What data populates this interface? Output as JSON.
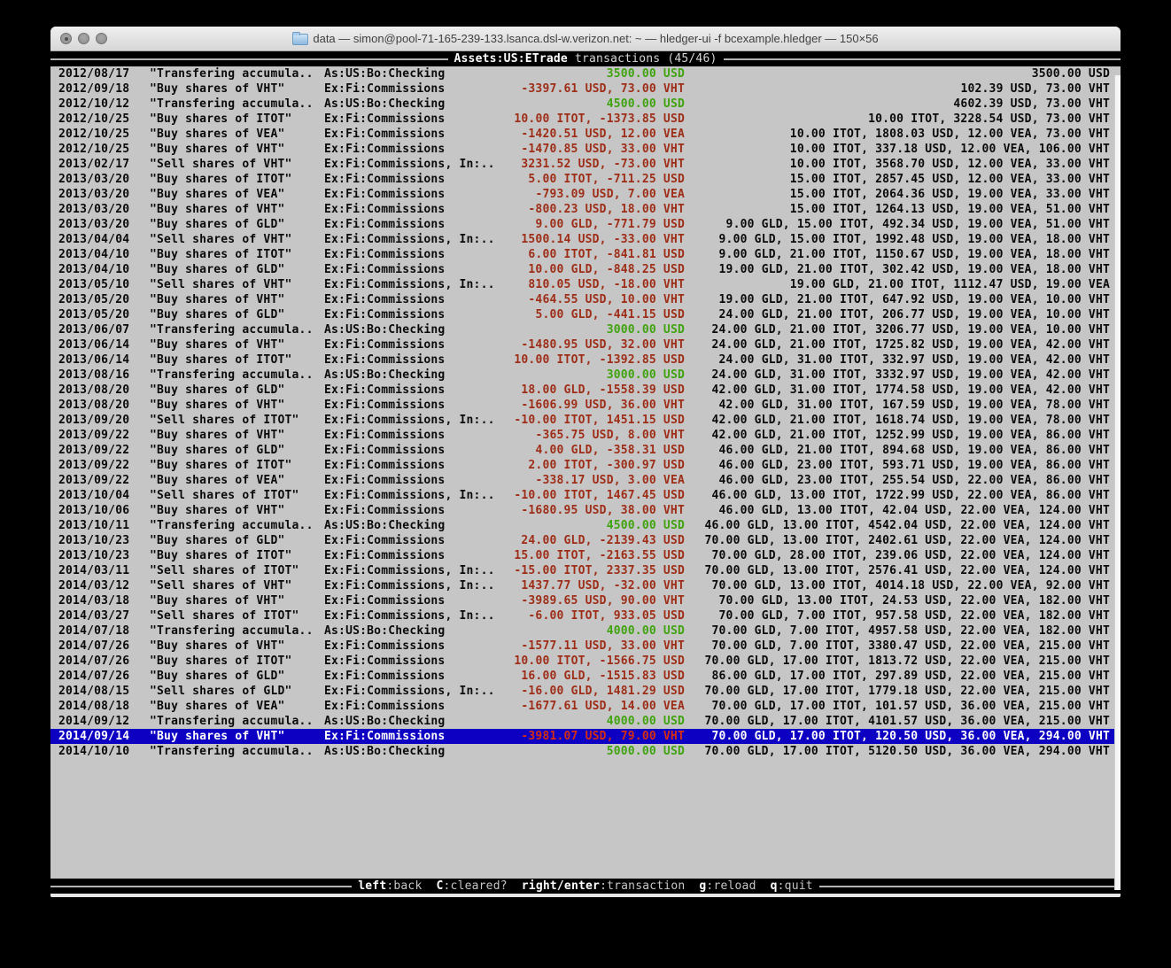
{
  "window": {
    "title": "data — simon@pool-71-165-239-133.lsanca.dsl-w.verizon.net: ~ — hledger-ui -f bcexample.hledger — 150×56"
  },
  "header": {
    "account": "Assets:US:ETrade",
    "label": "transactions (45/46)"
  },
  "footer": {
    "hints": [
      {
        "key": "left",
        "desc": ":back"
      },
      {
        "key": "C",
        "desc": ":cleared?"
      },
      {
        "key": "right/enter",
        "desc": ":transaction"
      },
      {
        "key": "g",
        "desc": ":reload"
      },
      {
        "key": "q",
        "desc": ":quit"
      }
    ]
  },
  "colors": {
    "terminal_bg": "#c6c6c6",
    "bar_bg": "#000000",
    "positive_green": "#3fa30e",
    "negative_red": "#9e2d17",
    "selected_red": "#d42d14",
    "selection_blue": "#0d00c2"
  },
  "transactions": {
    "selected_index": 44,
    "rows": [
      {
        "date": "2012/08/17",
        "description": "\"Transfering accumula..",
        "account": "As:US:Bo:Checking",
        "change": "3500.00 USD",
        "change_type": "deposit",
        "balance": "3500.00 USD"
      },
      {
        "date": "2012/09/18",
        "description": "\"Buy shares of VHT\"",
        "account": "Ex:Fi:Commissions",
        "change": "-3397.61 USD, 73.00 VHT",
        "change_type": "trade",
        "balance": "102.39 USD, 73.00 VHT"
      },
      {
        "date": "2012/10/12",
        "description": "\"Transfering accumula..",
        "account": "As:US:Bo:Checking",
        "change": "4500.00 USD",
        "change_type": "deposit",
        "balance": "4602.39 USD, 73.00 VHT"
      },
      {
        "date": "2012/10/25",
        "description": "\"Buy shares of ITOT\"",
        "account": "Ex:Fi:Commissions",
        "change": "10.00 ITOT, -1373.85 USD",
        "change_type": "trade",
        "balance": "10.00 ITOT, 3228.54 USD, 73.00 VHT"
      },
      {
        "date": "2012/10/25",
        "description": "\"Buy shares of VEA\"",
        "account": "Ex:Fi:Commissions",
        "change": "-1420.51 USD, 12.00 VEA",
        "change_type": "trade",
        "balance": "10.00 ITOT, 1808.03 USD, 12.00 VEA, 73.00 VHT"
      },
      {
        "date": "2012/10/25",
        "description": "\"Buy shares of VHT\"",
        "account": "Ex:Fi:Commissions",
        "change": "-1470.85 USD, 33.00 VHT",
        "change_type": "trade",
        "balance": "10.00 ITOT, 337.18 USD, 12.00 VEA, 106.00 VHT"
      },
      {
        "date": "2013/02/17",
        "description": "\"Sell shares of VHT\"",
        "account": "Ex:Fi:Commissions, In:..",
        "change": "3231.52 USD, -73.00 VHT",
        "change_type": "trade",
        "balance": "10.00 ITOT, 3568.70 USD, 12.00 VEA, 33.00 VHT"
      },
      {
        "date": "2013/03/20",
        "description": "\"Buy shares of ITOT\"",
        "account": "Ex:Fi:Commissions",
        "change": "5.00 ITOT, -711.25 USD",
        "change_type": "trade",
        "balance": "15.00 ITOT, 2857.45 USD, 12.00 VEA, 33.00 VHT"
      },
      {
        "date": "2013/03/20",
        "description": "\"Buy shares of VEA\"",
        "account": "Ex:Fi:Commissions",
        "change": "-793.09 USD, 7.00 VEA",
        "change_type": "trade",
        "balance": "15.00 ITOT, 2064.36 USD, 19.00 VEA, 33.00 VHT"
      },
      {
        "date": "2013/03/20",
        "description": "\"Buy shares of VHT\"",
        "account": "Ex:Fi:Commissions",
        "change": "-800.23 USD, 18.00 VHT",
        "change_type": "trade",
        "balance": "15.00 ITOT, 1264.13 USD, 19.00 VEA, 51.00 VHT"
      },
      {
        "date": "2013/03/20",
        "description": "\"Buy shares of GLD\"",
        "account": "Ex:Fi:Commissions",
        "change": "9.00 GLD, -771.79 USD",
        "change_type": "trade",
        "balance": "9.00 GLD, 15.00 ITOT, 492.34 USD, 19.00 VEA, 51.00 VHT"
      },
      {
        "date": "2013/04/04",
        "description": "\"Sell shares of VHT\"",
        "account": "Ex:Fi:Commissions, In:..",
        "change": "1500.14 USD, -33.00 VHT",
        "change_type": "trade",
        "balance": "9.00 GLD, 15.00 ITOT, 1992.48 USD, 19.00 VEA, 18.00 VHT"
      },
      {
        "date": "2013/04/10",
        "description": "\"Buy shares of ITOT\"",
        "account": "Ex:Fi:Commissions",
        "change": "6.00 ITOT, -841.81 USD",
        "change_type": "trade",
        "balance": "9.00 GLD, 21.00 ITOT, 1150.67 USD, 19.00 VEA, 18.00 VHT"
      },
      {
        "date": "2013/04/10",
        "description": "\"Buy shares of GLD\"",
        "account": "Ex:Fi:Commissions",
        "change": "10.00 GLD, -848.25 USD",
        "change_type": "trade",
        "balance": "19.00 GLD, 21.00 ITOT, 302.42 USD, 19.00 VEA, 18.00 VHT"
      },
      {
        "date": "2013/05/10",
        "description": "\"Sell shares of VHT\"",
        "account": "Ex:Fi:Commissions, In:..",
        "change": "810.05 USD, -18.00 VHT",
        "change_type": "trade",
        "balance": "19.00 GLD, 21.00 ITOT, 1112.47 USD, 19.00 VEA"
      },
      {
        "date": "2013/05/20",
        "description": "\"Buy shares of VHT\"",
        "account": "Ex:Fi:Commissions",
        "change": "-464.55 USD, 10.00 VHT",
        "change_type": "trade",
        "balance": "19.00 GLD, 21.00 ITOT, 647.92 USD, 19.00 VEA, 10.00 VHT"
      },
      {
        "date": "2013/05/20",
        "description": "\"Buy shares of GLD\"",
        "account": "Ex:Fi:Commissions",
        "change": "5.00 GLD, -441.15 USD",
        "change_type": "trade",
        "balance": "24.00 GLD, 21.00 ITOT, 206.77 USD, 19.00 VEA, 10.00 VHT"
      },
      {
        "date": "2013/06/07",
        "description": "\"Transfering accumula..",
        "account": "As:US:Bo:Checking",
        "change": "3000.00 USD",
        "change_type": "deposit",
        "balance": "24.00 GLD, 21.00 ITOT, 3206.77 USD, 19.00 VEA, 10.00 VHT"
      },
      {
        "date": "2013/06/14",
        "description": "\"Buy shares of VHT\"",
        "account": "Ex:Fi:Commissions",
        "change": "-1480.95 USD, 32.00 VHT",
        "change_type": "trade",
        "balance": "24.00 GLD, 21.00 ITOT, 1725.82 USD, 19.00 VEA, 42.00 VHT"
      },
      {
        "date": "2013/06/14",
        "description": "\"Buy shares of ITOT\"",
        "account": "Ex:Fi:Commissions",
        "change": "10.00 ITOT, -1392.85 USD",
        "change_type": "trade",
        "balance": "24.00 GLD, 31.00 ITOT, 332.97 USD, 19.00 VEA, 42.00 VHT"
      },
      {
        "date": "2013/08/16",
        "description": "\"Transfering accumula..",
        "account": "As:US:Bo:Checking",
        "change": "3000.00 USD",
        "change_type": "deposit",
        "balance": "24.00 GLD, 31.00 ITOT, 3332.97 USD, 19.00 VEA, 42.00 VHT"
      },
      {
        "date": "2013/08/20",
        "description": "\"Buy shares of GLD\"",
        "account": "Ex:Fi:Commissions",
        "change": "18.00 GLD, -1558.39 USD",
        "change_type": "trade",
        "balance": "42.00 GLD, 31.00 ITOT, 1774.58 USD, 19.00 VEA, 42.00 VHT"
      },
      {
        "date": "2013/08/20",
        "description": "\"Buy shares of VHT\"",
        "account": "Ex:Fi:Commissions",
        "change": "-1606.99 USD, 36.00 VHT",
        "change_type": "trade",
        "balance": "42.00 GLD, 31.00 ITOT, 167.59 USD, 19.00 VEA, 78.00 VHT"
      },
      {
        "date": "2013/09/20",
        "description": "\"Sell shares of ITOT\"",
        "account": "Ex:Fi:Commissions, In:..",
        "change": "-10.00 ITOT, 1451.15 USD",
        "change_type": "trade",
        "balance": "42.00 GLD, 21.00 ITOT, 1618.74 USD, 19.00 VEA, 78.00 VHT"
      },
      {
        "date": "2013/09/22",
        "description": "\"Buy shares of VHT\"",
        "account": "Ex:Fi:Commissions",
        "change": "-365.75 USD, 8.00 VHT",
        "change_type": "trade",
        "balance": "42.00 GLD, 21.00 ITOT, 1252.99 USD, 19.00 VEA, 86.00 VHT"
      },
      {
        "date": "2013/09/22",
        "description": "\"Buy shares of GLD\"",
        "account": "Ex:Fi:Commissions",
        "change": "4.00 GLD, -358.31 USD",
        "change_type": "trade",
        "balance": "46.00 GLD, 21.00 ITOT, 894.68 USD, 19.00 VEA, 86.00 VHT"
      },
      {
        "date": "2013/09/22",
        "description": "\"Buy shares of ITOT\"",
        "account": "Ex:Fi:Commissions",
        "change": "2.00 ITOT, -300.97 USD",
        "change_type": "trade",
        "balance": "46.00 GLD, 23.00 ITOT, 593.71 USD, 19.00 VEA, 86.00 VHT"
      },
      {
        "date": "2013/09/22",
        "description": "\"Buy shares of VEA\"",
        "account": "Ex:Fi:Commissions",
        "change": "-338.17 USD, 3.00 VEA",
        "change_type": "trade",
        "balance": "46.00 GLD, 23.00 ITOT, 255.54 USD, 22.00 VEA, 86.00 VHT"
      },
      {
        "date": "2013/10/04",
        "description": "\"Sell shares of ITOT\"",
        "account": "Ex:Fi:Commissions, In:..",
        "change": "-10.00 ITOT, 1467.45 USD",
        "change_type": "trade",
        "balance": "46.00 GLD, 13.00 ITOT, 1722.99 USD, 22.00 VEA, 86.00 VHT"
      },
      {
        "date": "2013/10/06",
        "description": "\"Buy shares of VHT\"",
        "account": "Ex:Fi:Commissions",
        "change": "-1680.95 USD, 38.00 VHT",
        "change_type": "trade",
        "balance": "46.00 GLD, 13.00 ITOT, 42.04 USD, 22.00 VEA, 124.00 VHT"
      },
      {
        "date": "2013/10/11",
        "description": "\"Transfering accumula..",
        "account": "As:US:Bo:Checking",
        "change": "4500.00 USD",
        "change_type": "deposit",
        "balance": "46.00 GLD, 13.00 ITOT, 4542.04 USD, 22.00 VEA, 124.00 VHT"
      },
      {
        "date": "2013/10/23",
        "description": "\"Buy shares of GLD\"",
        "account": "Ex:Fi:Commissions",
        "change": "24.00 GLD, -2139.43 USD",
        "change_type": "trade",
        "balance": "70.00 GLD, 13.00 ITOT, 2402.61 USD, 22.00 VEA, 124.00 VHT"
      },
      {
        "date": "2013/10/23",
        "description": "\"Buy shares of ITOT\"",
        "account": "Ex:Fi:Commissions",
        "change": "15.00 ITOT, -2163.55 USD",
        "change_type": "trade",
        "balance": "70.00 GLD, 28.00 ITOT, 239.06 USD, 22.00 VEA, 124.00 VHT"
      },
      {
        "date": "2014/03/11",
        "description": "\"Sell shares of ITOT\"",
        "account": "Ex:Fi:Commissions, In:..",
        "change": "-15.00 ITOT, 2337.35 USD",
        "change_type": "trade",
        "balance": "70.00 GLD, 13.00 ITOT, 2576.41 USD, 22.00 VEA, 124.00 VHT"
      },
      {
        "date": "2014/03/12",
        "description": "\"Sell shares of VHT\"",
        "account": "Ex:Fi:Commissions, In:..",
        "change": "1437.77 USD, -32.00 VHT",
        "change_type": "trade",
        "balance": "70.00 GLD, 13.00 ITOT, 4014.18 USD, 22.00 VEA, 92.00 VHT"
      },
      {
        "date": "2014/03/18",
        "description": "\"Buy shares of VHT\"",
        "account": "Ex:Fi:Commissions",
        "change": "-3989.65 USD, 90.00 VHT",
        "change_type": "trade",
        "balance": "70.00 GLD, 13.00 ITOT, 24.53 USD, 22.00 VEA, 182.00 VHT"
      },
      {
        "date": "2014/03/27",
        "description": "\"Sell shares of ITOT\"",
        "account": "Ex:Fi:Commissions, In:..",
        "change": "-6.00 ITOT, 933.05 USD",
        "change_type": "trade",
        "balance": "70.00 GLD, 7.00 ITOT, 957.58 USD, 22.00 VEA, 182.00 VHT"
      },
      {
        "date": "2014/07/18",
        "description": "\"Transfering accumula..",
        "account": "As:US:Bo:Checking",
        "change": "4000.00 USD",
        "change_type": "deposit",
        "balance": "70.00 GLD, 7.00 ITOT, 4957.58 USD, 22.00 VEA, 182.00 VHT"
      },
      {
        "date": "2014/07/26",
        "description": "\"Buy shares of VHT\"",
        "account": "Ex:Fi:Commissions",
        "change": "-1577.11 USD, 33.00 VHT",
        "change_type": "trade",
        "balance": "70.00 GLD, 7.00 ITOT, 3380.47 USD, 22.00 VEA, 215.00 VHT"
      },
      {
        "date": "2014/07/26",
        "description": "\"Buy shares of ITOT\"",
        "account": "Ex:Fi:Commissions",
        "change": "10.00 ITOT, -1566.75 USD",
        "change_type": "trade",
        "balance": "70.00 GLD, 17.00 ITOT, 1813.72 USD, 22.00 VEA, 215.00 VHT"
      },
      {
        "date": "2014/07/26",
        "description": "\"Buy shares of GLD\"",
        "account": "Ex:Fi:Commissions",
        "change": "16.00 GLD, -1515.83 USD",
        "change_type": "trade",
        "balance": "86.00 GLD, 17.00 ITOT, 297.89 USD, 22.00 VEA, 215.00 VHT"
      },
      {
        "date": "2014/08/15",
        "description": "\"Sell shares of GLD\"",
        "account": "Ex:Fi:Commissions, In:..",
        "change": "-16.00 GLD, 1481.29 USD",
        "change_type": "trade",
        "balance": "70.00 GLD, 17.00 ITOT, 1779.18 USD, 22.00 VEA, 215.00 VHT"
      },
      {
        "date": "2014/08/18",
        "description": "\"Buy shares of VEA\"",
        "account": "Ex:Fi:Commissions",
        "change": "-1677.61 USD, 14.00 VEA",
        "change_type": "trade",
        "balance": "70.00 GLD, 17.00 ITOT, 101.57 USD, 36.00 VEA, 215.00 VHT"
      },
      {
        "date": "2014/09/12",
        "description": "\"Transfering accumula..",
        "account": "As:US:Bo:Checking",
        "change": "4000.00 USD",
        "change_type": "deposit",
        "balance": "70.00 GLD, 17.00 ITOT, 4101.57 USD, 36.00 VEA, 215.00 VHT"
      },
      {
        "date": "2014/09/14",
        "description": "\"Buy shares of VHT\"",
        "account": "Ex:Fi:Commissions",
        "change": "-3981.07 USD, 79.00 VHT",
        "change_type": "trade",
        "balance": "70.00 GLD, 17.00 ITOT, 120.50 USD, 36.00 VEA, 294.00 VHT",
        "selected": true
      },
      {
        "date": "2014/10/10",
        "description": "\"Transfering accumula..",
        "account": "As:US:Bo:Checking",
        "change": "5000.00 USD",
        "change_type": "deposit",
        "balance": "70.00 GLD, 17.00 ITOT, 5120.50 USD, 36.00 VEA, 294.00 VHT"
      }
    ]
  }
}
